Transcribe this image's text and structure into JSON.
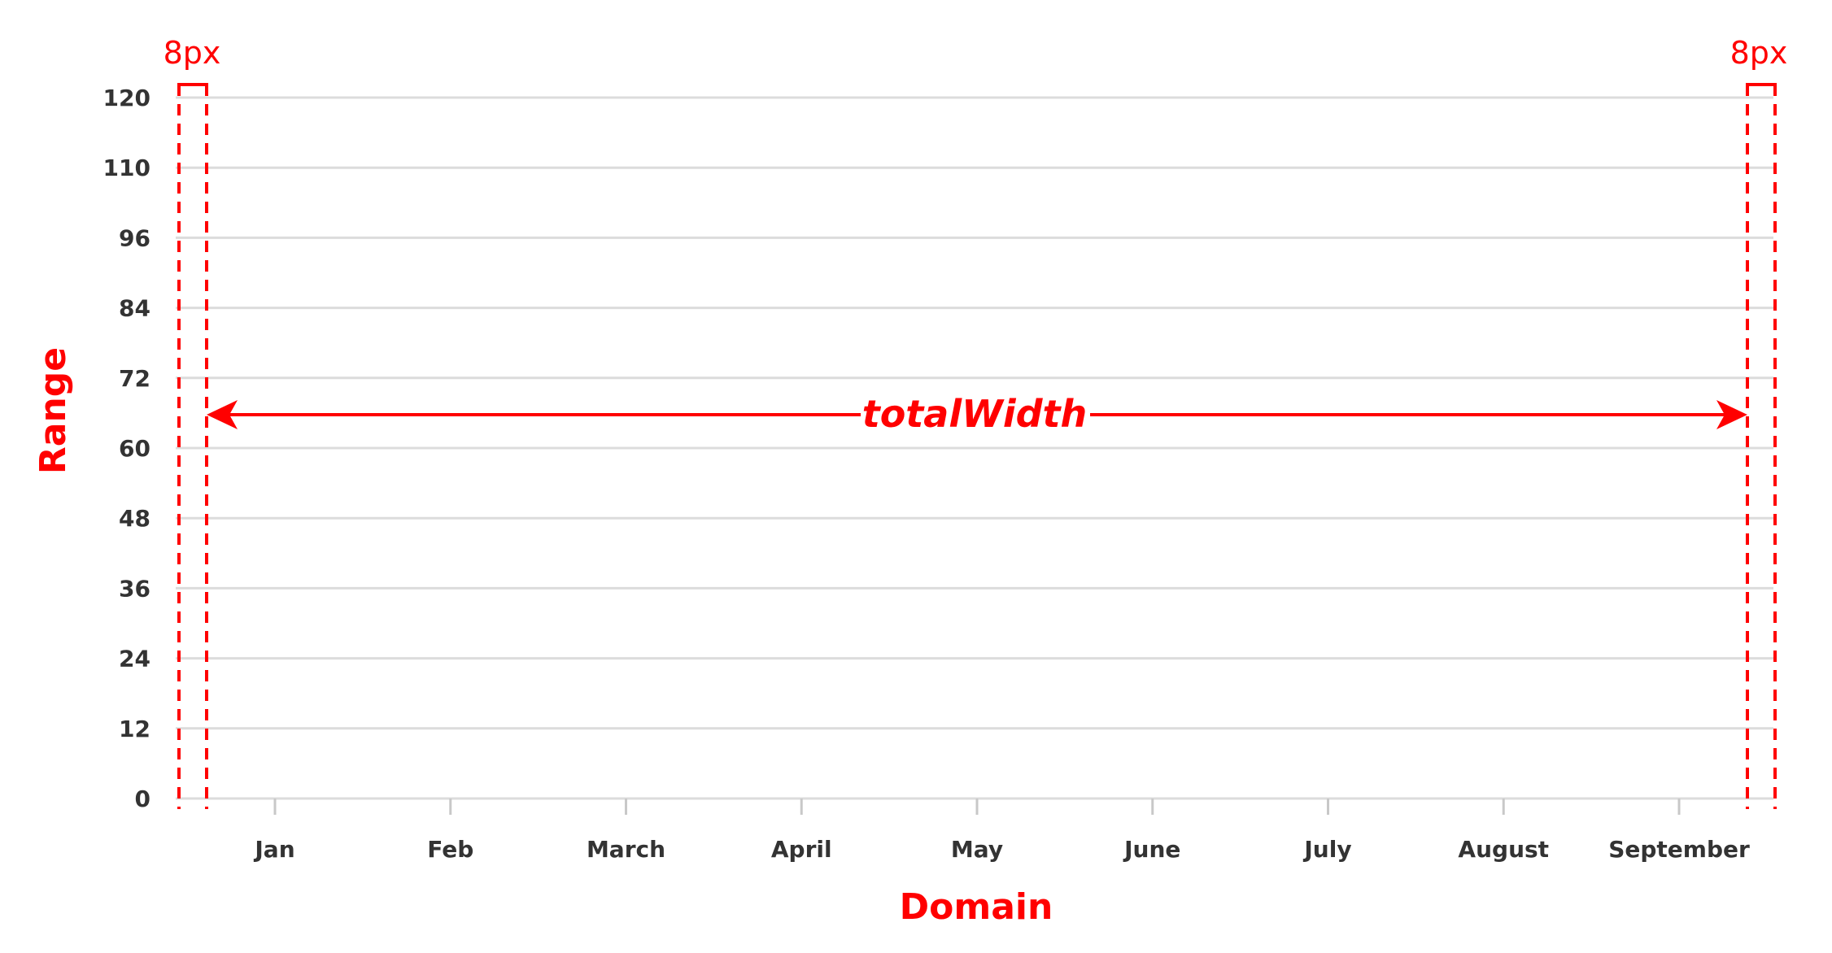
{
  "colors": {
    "accent": "#ff0000",
    "grid": "#dcdcdc",
    "text": "#333333"
  },
  "chart_data": {
    "type": "line",
    "categories": [
      "Jan",
      "Feb",
      "March",
      "April",
      "May",
      "June",
      "July",
      "August",
      "September"
    ],
    "y_ticks": [
      "0",
      "12",
      "24",
      "36",
      "48",
      "60",
      "72",
      "84",
      "96",
      "110",
      "120"
    ],
    "xlabel": "Domain",
    "ylabel": "Range",
    "ylim": [
      0,
      120
    ],
    "grid": true,
    "series": [],
    "annotations": {
      "left_padding_label": "8px",
      "right_padding_label": "8px",
      "width_label": "totalWidth"
    }
  }
}
